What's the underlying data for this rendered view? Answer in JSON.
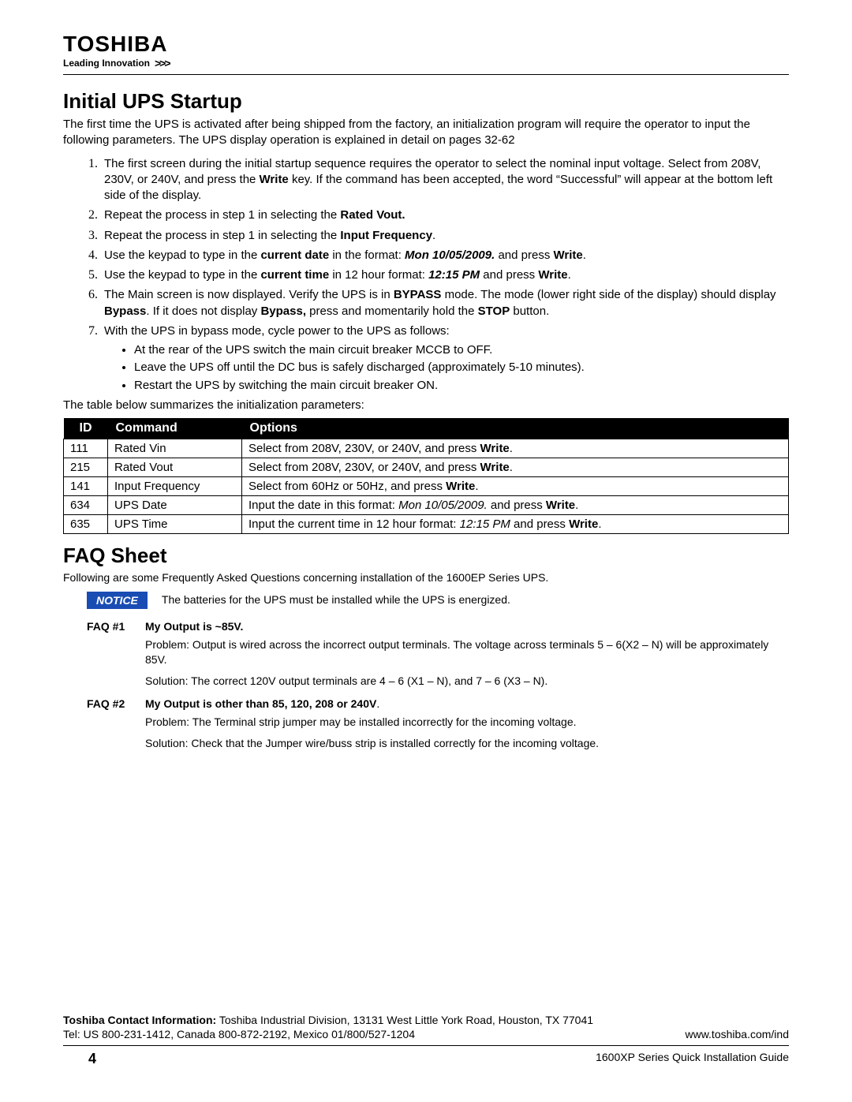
{
  "brand": {
    "name": "TOSHIBA",
    "tagline": "Leading Innovation",
    "chevrons": ">>>"
  },
  "s1": {
    "title": "Initial UPS Startup",
    "intro": "The first time the UPS is activated after being shipped from the factory, an initialization program will require the operator to input the following parameters.  The UPS display operation is explained in detail on pages 32-62",
    "step1a": "The first screen during the initial startup sequence requires the operator to select the nominal input voltage.  Select from 208V, 230V, or 240V, and press the ",
    "step1b": " key.  If the command has been accepted, the word “Successful” will appear at the bottom left side of the display.",
    "write": "Write",
    "step2a": "Repeat the process in step 1 in selecting the ",
    "step2b": "Rated Vout.",
    "step3a": "Repeat the process in step 1 in selecting the ",
    "step3b": "Input Frequency",
    "step3c": ".",
    "step4a": "Use the keypad to type in the ",
    "step4b": "current date",
    "step4c": " in the format: ",
    "step4d": "Mon 10/05/2009.",
    "step4e": " and press ",
    "step4f": ".",
    "step5a": "Use the keypad to type in the ",
    "step5b": "current time",
    "step5c": " in 12 hour format: ",
    "step5d": "12:15 PM",
    "step5e": " and press ",
    "step5f": ".",
    "step6a": "The Main screen is now displayed. Verify the UPS is in ",
    "step6b": "BYPASS",
    "step6c": " mode.  The mode (lower right side  of the display)  should display ",
    "step6d": "Bypass",
    "step6e": ".  If it does not display ",
    "step6f": "Bypass,",
    "step6g": " press and momentarily hold the ",
    "step6h": "STOP",
    "step6i": " button.",
    "step7": "With the UPS in bypass mode, cycle power to the UPS as follows:",
    "sub1": "At the rear of the UPS switch the main circuit breaker MCCB to OFF.",
    "sub2": "Leave the UPS off until the DC bus is safely discharged (approximately 5-10 minutes).",
    "sub3": "Restart the UPS by switching the main circuit breaker ON.",
    "preTable": "The table below summarizes the initialization parameters:"
  },
  "table": {
    "headers": {
      "id": "ID",
      "cmd": "Command",
      "opt": "Options"
    },
    "rows": [
      {
        "id": "111",
        "cmd": "Rated Vin",
        "optA": "Select from 208V, 230V, or 240V, and press ",
        "optB": "Write",
        "optC": "."
      },
      {
        "id": "215",
        "cmd": "Rated Vout",
        "optA": "Select from 208V, 230V, or 240V, and press ",
        "optB": "Write",
        "optC": "."
      },
      {
        "id": "141",
        "cmd": "Input Frequency",
        "optA": "Select from 60Hz or 50Hz, and press ",
        "optB": "Write",
        "optC": "."
      },
      {
        "id": "634",
        "cmd": "UPS Date",
        "optA": "Input the date in this format: ",
        "optI": "Mon 10/05/2009.",
        "optMid": " and press ",
        "optB": "Write",
        "optC": "."
      },
      {
        "id": "635",
        "cmd": "UPS Time",
        "optA": "Input the current time in 12 hour format: ",
        "optI": "12:15 PM",
        "optMid": " and press ",
        "optB": "Write",
        "optC": "."
      }
    ]
  },
  "faq": {
    "title": "FAQ Sheet",
    "sub": "Following are some Frequently Asked Questions concerning installation of the 1600EP Series UPS.",
    "noticeLabel": "NOTICE",
    "noticeText": "The batteries for the UPS must be installed while the UPS is energized.",
    "q1": {
      "id": "FAQ #1",
      "title": "My Output is ~85V.",
      "problem": "Problem:  Output is wired across the incorrect output terminals.  The voltage across terminals 5 – 6(X2 – N) will be approximately 85V.",
      "solution": "Solution:  The correct 120V output terminals are 4 –  6 (X1 –  N), and 7 –  6 (X3 –  N)."
    },
    "q2": {
      "id": "FAQ #2",
      "title": "My Output is other than 85, 120, 208 or 240V",
      "titleDot": ".",
      "problem": "Problem:  The Terminal strip jumper may be installed incorrectly for the incoming voltage.",
      "solution": "Solution:  Check that the Jumper wire/buss strip is installed correctly for the incoming voltage."
    }
  },
  "footer": {
    "contactLabel": "Toshiba Contact Information:",
    "contact": " Toshiba Industrial Division, 13131 West Little York Road, Houston, TX  77041",
    "tel": "Tel: US 800-231-1412, Canada 800-872-2192, Mexico 01/800/527-1204",
    "url": "www.toshiba.com/ind",
    "pageNum": "4",
    "doc": "1600XP Series Quick Installation Guide"
  }
}
